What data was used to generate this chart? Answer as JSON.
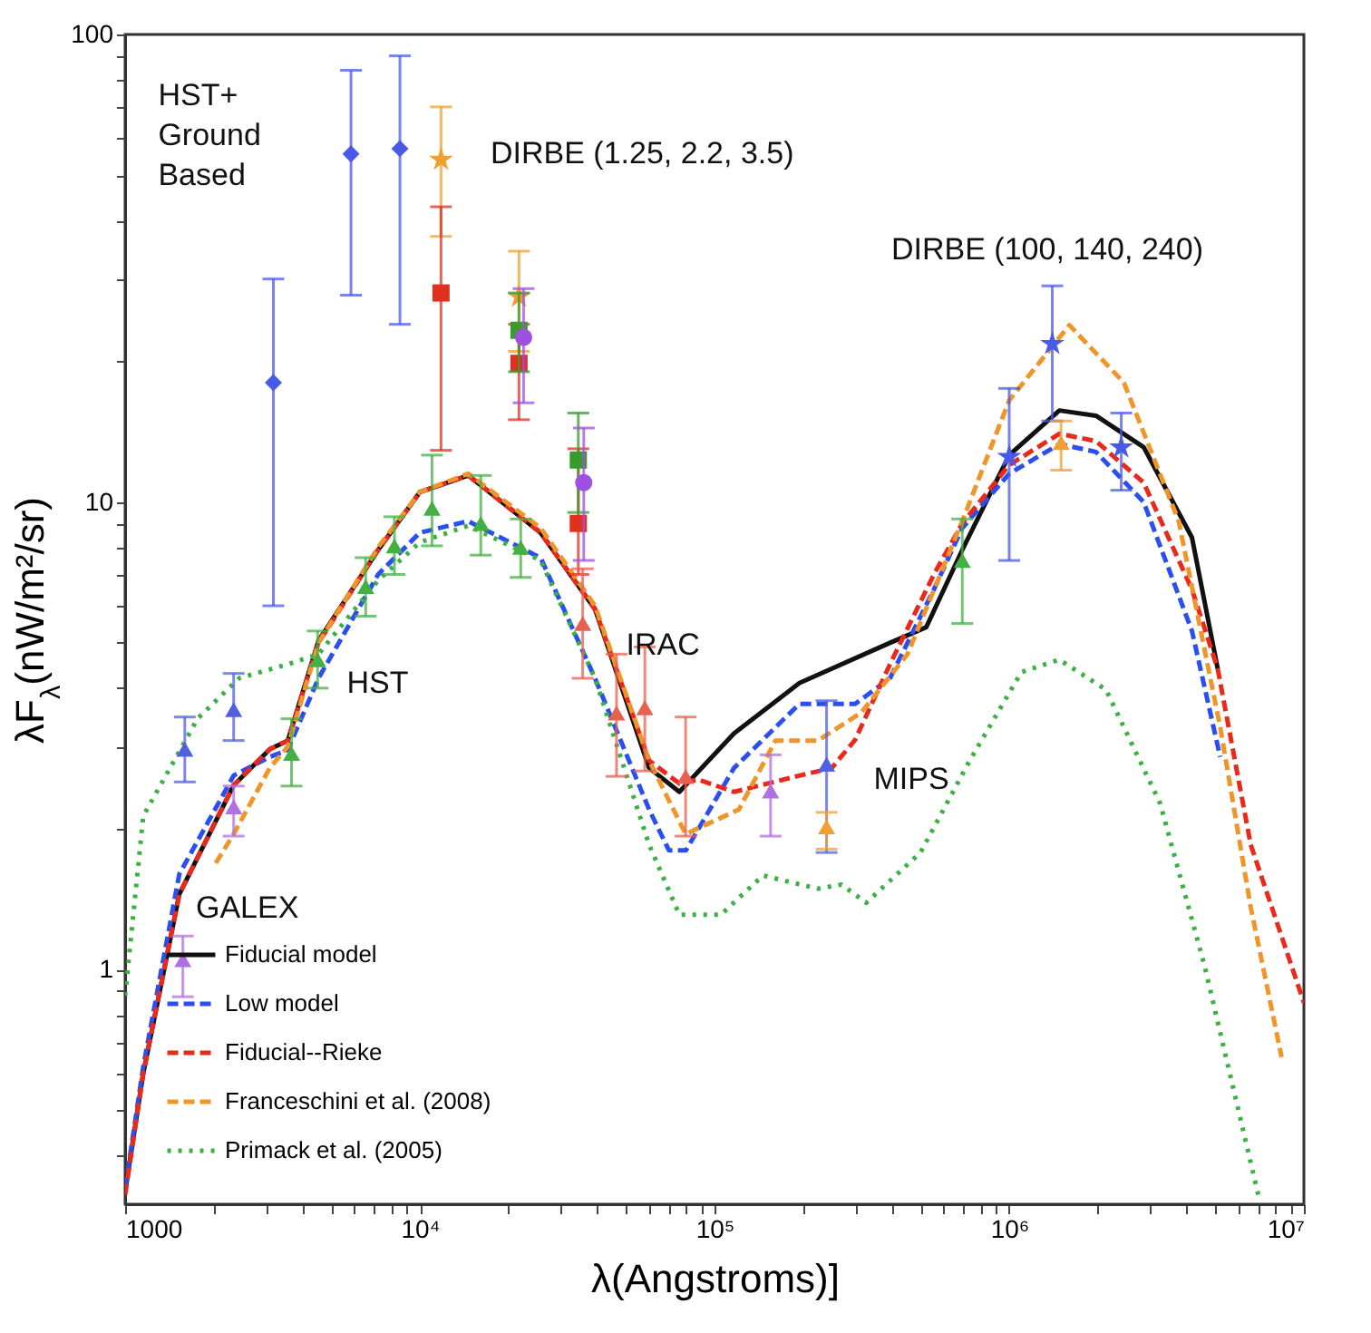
{
  "chart_data": {
    "type": "line",
    "xlabel": "λ(Angstroms)]",
    "ylabel": "λF$_{λ}$(nW/m²/sr)",
    "log": "xy",
    "grid": false,
    "legend": "bottom left",
    "xlim": [
      1000,
      10000000
    ],
    "ylim": [
      0.315,
      100
    ],
    "xticks": [
      {
        "value": 1000,
        "label": "1000"
      },
      {
        "value": 2000,
        "label": null
      },
      {
        "value": 3000,
        "label": null
      },
      {
        "value": 4000,
        "label": null
      },
      {
        "value": 5000,
        "label": null
      },
      {
        "value": 6000,
        "label": null
      },
      {
        "value": 7000,
        "label": null
      },
      {
        "value": 8000,
        "label": null
      },
      {
        "value": 9000,
        "label": null
      },
      {
        "value": 10000,
        "label": "10⁴"
      },
      {
        "value": 20000,
        "label": null
      },
      {
        "value": 30000,
        "label": null
      },
      {
        "value": 40000,
        "label": null
      },
      {
        "value": 50000,
        "label": null
      },
      {
        "value": 60000,
        "label": null
      },
      {
        "value": 70000,
        "label": null
      },
      {
        "value": 80000,
        "label": null
      },
      {
        "value": 90000,
        "label": null
      },
      {
        "value": 100000,
        "label": "10⁵"
      },
      {
        "value": 200000,
        "label": null
      },
      {
        "value": 300000,
        "label": null
      },
      {
        "value": 400000,
        "label": null
      },
      {
        "value": 500000,
        "label": null
      },
      {
        "value": 600000,
        "label": null
      },
      {
        "value": 700000,
        "label": null
      },
      {
        "value": 800000,
        "label": null
      },
      {
        "value": 900000,
        "label": null
      },
      {
        "value": 1000000,
        "label": "10⁶"
      },
      {
        "value": 2000000,
        "label": null
      },
      {
        "value": 3000000,
        "label": null
      },
      {
        "value": 4000000,
        "label": null
      },
      {
        "value": 5000000,
        "label": null
      },
      {
        "value": 6000000,
        "label": null
      },
      {
        "value": 7000000,
        "label": null
      },
      {
        "value": 8000000,
        "label": null
      },
      {
        "value": 9000000,
        "label": null
      },
      {
        "value": 10000000,
        "label": "10⁷"
      }
    ],
    "yticks": [
      {
        "value": 0.4,
        "label": null
      },
      {
        "value": 0.5,
        "label": null
      },
      {
        "value": 0.6,
        "label": null
      },
      {
        "value": 0.7,
        "label": null
      },
      {
        "value": 0.8,
        "label": null
      },
      {
        "value": 0.9,
        "label": null
      },
      1,
      {
        "value": 2,
        "label": null
      },
      {
        "value": 3,
        "label": null
      },
      {
        "value": 4,
        "label": null
      },
      {
        "value": 5,
        "label": null
      },
      {
        "value": 6,
        "label": null
      },
      {
        "value": 7,
        "label": null
      },
      {
        "value": 8,
        "label": null
      },
      {
        "value": 9,
        "label": null
      },
      10,
      {
        "value": 20,
        "label": null
      },
      {
        "value": 30,
        "label": null
      },
      {
        "value": 40,
        "label": null
      },
      {
        "value": 50,
        "label": null
      },
      {
        "value": 60,
        "label": null
      },
      {
        "value": 70,
        "label": null
      },
      {
        "value": 80,
        "label": null
      },
      {
        "value": 90,
        "label": null
      },
      100
    ],
    "series": [
      {
        "name": "Fiducial model",
        "color": "#111111",
        "line_style": "solid",
        "x": [
          1000,
          1152,
          1527,
          2335,
          3095,
          3565,
          4530,
          7220,
          10000,
          14600,
          25700,
          39300,
          60000,
          76000,
          88000,
          116500,
          194000,
          394000,
          523000,
          693000,
          1000000,
          1480000,
          1970000,
          2860000,
          4170000,
          5100000
        ],
        "values": [
          0.335,
          0.6,
          1.45,
          2.48,
          2.96,
          3.09,
          5.05,
          7.9,
          10.5,
          11.4,
          8.6,
          5.9,
          2.7,
          2.4,
          2.65,
          3.2,
          4.1,
          5.0,
          5.4,
          7.9,
          12.6,
          15.7,
          15.3,
          13.1,
          8.4,
          4.4
        ]
      },
      {
        "name": "Low model",
        "color": "#2b4ef0",
        "line_style": "dashed",
        "x": [
          1000,
          1152,
          1527,
          2335,
          3095,
          3565,
          4530,
          7220,
          10000,
          14600,
          25700,
          39300,
          60000,
          70000,
          80000,
          116500,
          194000,
          300000,
          394000,
          555000,
          693000,
          1000000,
          1480000,
          1970000,
          2860000,
          4170000,
          5200000
        ],
        "values": [
          0.34,
          0.62,
          1.6,
          2.6,
          2.85,
          2.95,
          4.2,
          7.0,
          8.6,
          9.1,
          7.6,
          4.2,
          2.2,
          1.8,
          1.8,
          2.7,
          3.7,
          3.7,
          4.2,
          6.5,
          8.8,
          11.5,
          13.3,
          12.8,
          10,
          5.3,
          2.85
        ]
      },
      {
        "name": "Fiducial--Rieke",
        "color": "#e8291c",
        "line_style": "dashed",
        "x": [
          1000,
          1152,
          1527,
          2335,
          3095,
          3565,
          4530,
          7220,
          10000,
          14600,
          25700,
          39300,
          60000,
          76000,
          88000,
          116500,
          194000,
          250000,
          300000,
          394000,
          555000,
          693000,
          1000000,
          1480000,
          1970000,
          2860000,
          4170000,
          5100000,
          6600000,
          10000000
        ],
        "values": [
          0.33,
          0.6,
          1.45,
          2.48,
          2.96,
          3.09,
          5.0,
          7.9,
          10.5,
          11.4,
          8.6,
          5.9,
          2.8,
          2.5,
          2.55,
          2.4,
          2.6,
          2.7,
          3.1,
          4.5,
          7.0,
          9.0,
          12.0,
          14.0,
          13.5,
          11,
          6.5,
          4.4,
          1.85,
          0.85
        ]
      },
      {
        "name": "Franceschini et al. (2008)",
        "color": "#f0952a",
        "line_style": "dashed",
        "x": [
          2030,
          2335,
          3095,
          3565,
          4530,
          7220,
          10000,
          14600,
          25700,
          39300,
          60000,
          79800,
          121000,
          161000,
          224000,
          314000,
          452000,
          693000,
          1000000,
          1600000,
          2450000,
          3760000,
          5200000,
          6600000,
          8400000
        ],
        "values": [
          1.69,
          1.95,
          2.7,
          3.0,
          5.0,
          8.0,
          10.5,
          11.5,
          8.8,
          6.0,
          2.8,
          1.95,
          2.2,
          3.09,
          3.09,
          3.54,
          4.73,
          9.1,
          16.5,
          23.9,
          18,
          9.1,
          3.3,
          1.36,
          0.65
        ]
      },
      {
        "name": "Primack et al. (2005)",
        "color": "#3cb043",
        "line_style": "dotted",
        "x": [
          1000,
          1152,
          1760,
          2435,
          3565,
          4530,
          7220,
          10000,
          14600,
          25700,
          39300,
          60000,
          76000,
          105000,
          146000,
          224000,
          270000,
          327000,
          500000,
          730000,
          1100000,
          1480000,
          2130000,
          3250000,
          4600000,
          7000000
        ],
        "values": [
          0.88,
          2.13,
          3.44,
          4.2,
          4.5,
          4.73,
          6.8,
          8.2,
          8.9,
          7.5,
          4.2,
          1.85,
          1.31,
          1.31,
          1.59,
          1.49,
          1.52,
          1.39,
          1.78,
          2.78,
          4.33,
          4.6,
          3.97,
          2.27,
          1.02,
          0.33
        ]
      },
      {
        "type": "scatter",
        "color": "#4a5ae8",
        "marker": "diamond",
        "x": [
          3185,
          5840,
          8560
        ],
        "values": [
          18,
          55.5,
          57
        ],
        "errors": [
          [
            6,
            30
          ],
          [
            27.7,
            83.8
          ],
          [
            24,
            90
          ]
        ]
      },
      {
        "type": "scatter",
        "color": "#f0a030",
        "marker": "star",
        "x": [
          11800,
          21700
        ],
        "values": [
          54,
          27.5
        ],
        "errors": [
          [
            37,
            70
          ],
          [
            21,
            34.4
          ]
        ]
      },
      {
        "type": "scatter",
        "color": "#e03020",
        "marker": "square",
        "x": [
          11800,
          21700,
          34500
        ],
        "values": [
          28,
          19.8,
          9.0
        ],
        "errors": [
          [
            12.9,
            42.8
          ],
          [
            15,
            24
          ],
          [
            7,
            13
          ]
        ]
      },
      {
        "type": "scatter",
        "color": "#3a9a30",
        "marker": "square",
        "x": [
          21700,
          34500
        ],
        "values": [
          23.3,
          12.3
        ],
        "errors": [
          [
            19,
            28
          ],
          [
            9.5,
            15.5
          ]
        ]
      },
      {
        "type": "scatter",
        "color": "#a050e0",
        "marker": "circle",
        "x": [
          22500,
          36000
        ],
        "values": [
          22.5,
          11.0
        ],
        "errors": [
          [
            16.3,
            28.6
          ],
          [
            7.5,
            14.4
          ]
        ]
      },
      {
        "type": "scatter",
        "color": "#44b044",
        "marker": "triangle",
        "x": [
          3670,
          4500,
          6550,
          8200,
          11000,
          16100,
          22000,
          693000
        ],
        "values": [
          2.9,
          4.6,
          6.6,
          8.06,
          9.7,
          9.0,
          8.0,
          7.5
        ],
        "errors": [
          [
            2.47,
            3.44
          ],
          [
            4.0,
            5.3
          ],
          [
            5.7,
            7.6
          ],
          [
            7,
            9.3
          ],
          [
            8.06,
            12.6
          ],
          [
            7.7,
            11.4
          ],
          [
            6.9,
            9.2
          ],
          [
            5.5,
            9.2
          ]
        ]
      },
      {
        "type": "scatter",
        "color": "#5060e0",
        "marker": "triangle",
        "x": [
          1594,
          2335,
          240000
        ],
        "values": [
          2.96,
          3.6,
          2.75
        ],
        "errors": [
          [
            2.52,
            3.47
          ],
          [
            3.09,
            4.3
          ],
          [
            1.78,
            3.76
          ]
        ]
      },
      {
        "type": "scatter",
        "color": "#b070e0",
        "marker": "triangle",
        "x": [
          1570,
          2335,
          155000
        ],
        "values": [
          1.05,
          2.23,
          2.41
        ],
        "errors": [
          [
            0.875,
            1.18
          ],
          [
            1.93,
            2.47
          ],
          [
            1.93,
            2.88
          ]
        ]
      },
      {
        "type": "scatter",
        "color": "#e86050",
        "marker": "triangle",
        "x": [
          35700,
          46500,
          58000,
          79800
        ],
        "values": [
          5.5,
          3.54,
          3.63,
          2.59
        ],
        "errors": [
          [
            4.2,
            7.2
          ],
          [
            2.59,
            4.73
          ],
          [
            2.66,
            4.9
          ],
          [
            1.93,
            3.47
          ]
        ]
      },
      {
        "type": "scatter",
        "color": "#4a5ae8",
        "marker": "star",
        "x": [
          1000000,
          1400000,
          2400000
        ],
        "values": [
          12.5,
          21.8,
          13.1
        ],
        "errors": [
          [
            7.5,
            17.5
          ],
          [
            14.9,
            29
          ],
          [
            10.6,
            15.5
          ]
        ]
      },
      {
        "type": "scatter",
        "color": "#f0a030",
        "marker": "triangle",
        "x": [
          240000,
          1500000
        ],
        "values": [
          2.02,
          13.4
        ],
        "errors": [
          [
            1.81,
            2.17
          ],
          [
            11.7,
            14.9
          ]
        ]
      }
    ],
    "annotations": [
      "HST+\nGround\nBased",
      "DIRBE (1.25, 2.2, 3.5)",
      "DIRBE (100, 140, 240)",
      "IRAC",
      "HST",
      "GALEX",
      "MIPS"
    ]
  }
}
